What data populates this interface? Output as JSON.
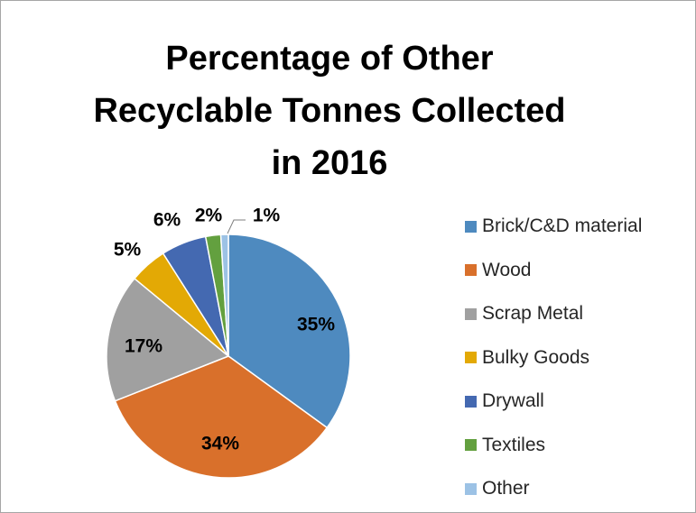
{
  "chart_data": {
    "type": "pie",
    "title_lines": [
      "Percentage of Other",
      "Recyclable Tonnes Collected",
      "in 2016"
    ],
    "slices": [
      {
        "name": "Brick/C&D material",
        "value": 35,
        "label": "35%",
        "color": "#4e8abf"
      },
      {
        "name": "Wood",
        "value": 34,
        "label": "34%",
        "color": "#d9702b"
      },
      {
        "name": "Scrap Metal",
        "value": 17,
        "label": "17%",
        "color": "#a0a0a0"
      },
      {
        "name": "Bulky Goods",
        "value": 5,
        "label": "5%",
        "color": "#e3a905"
      },
      {
        "name": "Drywall",
        "value": 6,
        "label": "6%",
        "color": "#4469b1"
      },
      {
        "name": "Textiles",
        "value": 2,
        "label": "2%",
        "color": "#63a03f"
      },
      {
        "name": "Other",
        "value": 1,
        "label": "1%",
        "color": "#9cc2e5"
      }
    ],
    "legend_position": "right"
  }
}
